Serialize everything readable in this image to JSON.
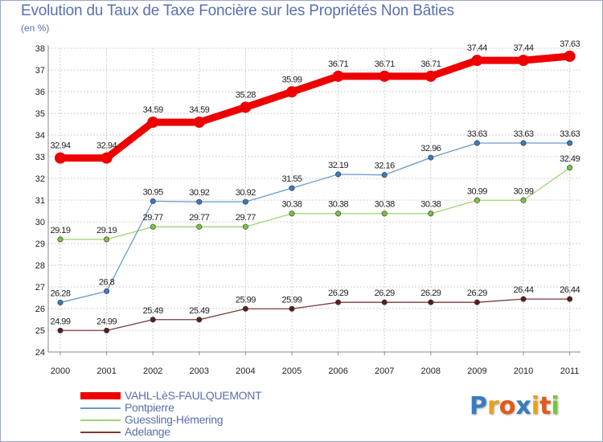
{
  "chart_data": {
    "type": "line",
    "title": "Evolution du Taux de Taxe Foncière sur les Propriétés Non Bâties",
    "subtitle": "(en %)",
    "x": [
      "2000",
      "2001",
      "2002",
      "2003",
      "2004",
      "2005",
      "2006",
      "2007",
      "2008",
      "2009",
      "2010",
      "2011"
    ],
    "ylim": [
      24,
      38
    ],
    "yticks": [
      24,
      25,
      26,
      27,
      28,
      29,
      30,
      31,
      32,
      33,
      34,
      35,
      36,
      37,
      38
    ],
    "grid": true,
    "legend_position": "bottom-left",
    "series": [
      {
        "name": "VAHL-LèS-FAULQUEMONT",
        "color": "#ee0000",
        "thick": true,
        "values": [
          32.94,
          32.94,
          34.59,
          34.59,
          35.28,
          35.99,
          36.71,
          36.71,
          36.71,
          37.44,
          37.44,
          37.63
        ],
        "labels": [
          "32.94",
          "32.94",
          "34.59",
          "34.59",
          "35.28",
          "35.99",
          "36.71",
          "36.71",
          "36.71",
          "37.44",
          "37.44",
          "37.63"
        ]
      },
      {
        "name": "Pontpierre",
        "color": "#6b9ac9",
        "marker": "#3a7bbf",
        "values": [
          26.28,
          26.8,
          30.95,
          30.92,
          30.92,
          31.55,
          32.19,
          32.16,
          32.96,
          33.63,
          33.63,
          33.63
        ],
        "labels": [
          "26.28",
          "26.8",
          "30.95",
          "30.92",
          "30.92",
          "31.55",
          "32.19",
          "32.16",
          "32.96",
          "33.63",
          "33.63",
          "33.63"
        ]
      },
      {
        "name": "Guessling-Hémering",
        "color": "#9ed46b",
        "marker": "#7cc242",
        "values": [
          29.19,
          29.19,
          29.77,
          29.77,
          29.77,
          30.38,
          30.38,
          30.38,
          30.38,
          30.99,
          30.99,
          32.49
        ],
        "labels": [
          "29.19",
          "29.19",
          "29.77",
          "29.77",
          "29.77",
          "30.38",
          "30.38",
          "30.38",
          "30.38",
          "30.99",
          "30.99",
          "32.49"
        ]
      },
      {
        "name": "Adelange",
        "color": "#7a3a3a",
        "marker": "#5a1e1e",
        "values": [
          24.99,
          24.99,
          25.49,
          25.49,
          25.99,
          25.99,
          26.29,
          26.29,
          26.29,
          26.29,
          26.44,
          26.44
        ],
        "labels": [
          "24.99",
          "24.99",
          "25.49",
          "25.49",
          "25.99",
          "25.99",
          "26.29",
          "26.29",
          "26.29",
          "26.29",
          "26.44",
          "26.44"
        ]
      }
    ]
  },
  "logo": {
    "letters": [
      "P",
      "r",
      "o",
      "x",
      "i",
      "t",
      "i"
    ],
    "colors": [
      "#3a7bbf",
      "#e8a21a",
      "#e05a1a",
      "#3a7bbf",
      "#e8a21a",
      "#e05a1a",
      "#7cc242"
    ]
  }
}
